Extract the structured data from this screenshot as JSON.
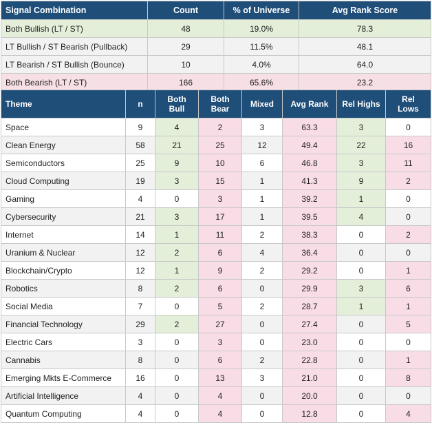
{
  "summary": {
    "headers": [
      "Signal Combination",
      "Count",
      "% of Universe",
      "Avg Rank Score"
    ],
    "rows": [
      {
        "label": "Both Bullish (LT / ST)",
        "count": "48",
        "pct": "19.0%",
        "avg": "78.3"
      },
      {
        "label": "LT Bullish / ST Bearish (Pullback)",
        "count": "29",
        "pct": "11.5%",
        "avg": "48.1"
      },
      {
        "label": "LT Bearish / ST Bullish (Bounce)",
        "count": "10",
        "pct": "4.0%",
        "avg": "64.0"
      },
      {
        "label": "Both Bearish (LT / ST)",
        "count": "166",
        "pct": "65.6%",
        "avg": "23.2"
      }
    ]
  },
  "themes": {
    "headers": [
      "Theme",
      "n",
      "Both Bull",
      "Both Bear",
      "Mixed",
      "Avg Rank",
      "Rel Highs",
      "Rel Lows"
    ],
    "rows": [
      {
        "theme": "Space",
        "n": "9",
        "bull": "4",
        "bear": "2",
        "mixed": "3",
        "avg": "63.3",
        "highs": "3",
        "lows": "0"
      },
      {
        "theme": "Clean Energy",
        "n": "58",
        "bull": "21",
        "bear": "25",
        "mixed": "12",
        "avg": "49.4",
        "highs": "22",
        "lows": "16"
      },
      {
        "theme": "Semiconductors",
        "n": "25",
        "bull": "9",
        "bear": "10",
        "mixed": "6",
        "avg": "46.8",
        "highs": "3",
        "lows": "11"
      },
      {
        "theme": "Cloud Computing",
        "n": "19",
        "bull": "3",
        "bear": "15",
        "mixed": "1",
        "avg": "41.3",
        "highs": "9",
        "lows": "2"
      },
      {
        "theme": "Gaming",
        "n": "4",
        "bull": "0",
        "bear": "3",
        "mixed": "1",
        "avg": "39.2",
        "highs": "1",
        "lows": "0"
      },
      {
        "theme": "Cybersecurity",
        "n": "21",
        "bull": "3",
        "bear": "17",
        "mixed": "1",
        "avg": "39.5",
        "highs": "4",
        "lows": "0"
      },
      {
        "theme": "Internet",
        "n": "14",
        "bull": "1",
        "bear": "11",
        "mixed": "2",
        "avg": "38.3",
        "highs": "0",
        "lows": "2"
      },
      {
        "theme": "Uranium & Nuclear",
        "n": "12",
        "bull": "2",
        "bear": "6",
        "mixed": "4",
        "avg": "36.4",
        "highs": "0",
        "lows": "0"
      },
      {
        "theme": "Blockchain/Crypto",
        "n": "12",
        "bull": "1",
        "bear": "9",
        "mixed": "2",
        "avg": "29.2",
        "highs": "0",
        "lows": "1"
      },
      {
        "theme": "Robotics",
        "n": "8",
        "bull": "2",
        "bear": "6",
        "mixed": "0",
        "avg": "29.9",
        "highs": "3",
        "lows": "6"
      },
      {
        "theme": "Social Media",
        "n": "7",
        "bull": "0",
        "bear": "5",
        "mixed": "2",
        "avg": "28.7",
        "highs": "1",
        "lows": "1"
      },
      {
        "theme": "Financial Technology",
        "n": "29",
        "bull": "2",
        "bear": "27",
        "mixed": "0",
        "avg": "27.4",
        "highs": "0",
        "lows": "5"
      },
      {
        "theme": "Electric Cars",
        "n": "3",
        "bull": "0",
        "bear": "3",
        "mixed": "0",
        "avg": "23.0",
        "highs": "0",
        "lows": "0"
      },
      {
        "theme": "Cannabis",
        "n": "8",
        "bull": "0",
        "bear": "6",
        "mixed": "2",
        "avg": "22.8",
        "highs": "0",
        "lows": "1"
      },
      {
        "theme": "Emerging Mkts E-Commerce",
        "n": "16",
        "bull": "0",
        "bear": "13",
        "mixed": "3",
        "avg": "21.0",
        "highs": "0",
        "lows": "8"
      },
      {
        "theme": "Artificial Intelligence",
        "n": "4",
        "bull": "0",
        "bear": "4",
        "mixed": "0",
        "avg": "20.0",
        "highs": "0",
        "lows": "0"
      },
      {
        "theme": "Quantum Computing",
        "n": "4",
        "bull": "0",
        "bear": "4",
        "mixed": "0",
        "avg": "12.8",
        "highs": "0",
        "lows": "4"
      }
    ]
  },
  "colors": {
    "header": "#1f4e79",
    "green": "#e3efd9",
    "pink": "#f9dde6",
    "gray": "#f2f2f2"
  }
}
